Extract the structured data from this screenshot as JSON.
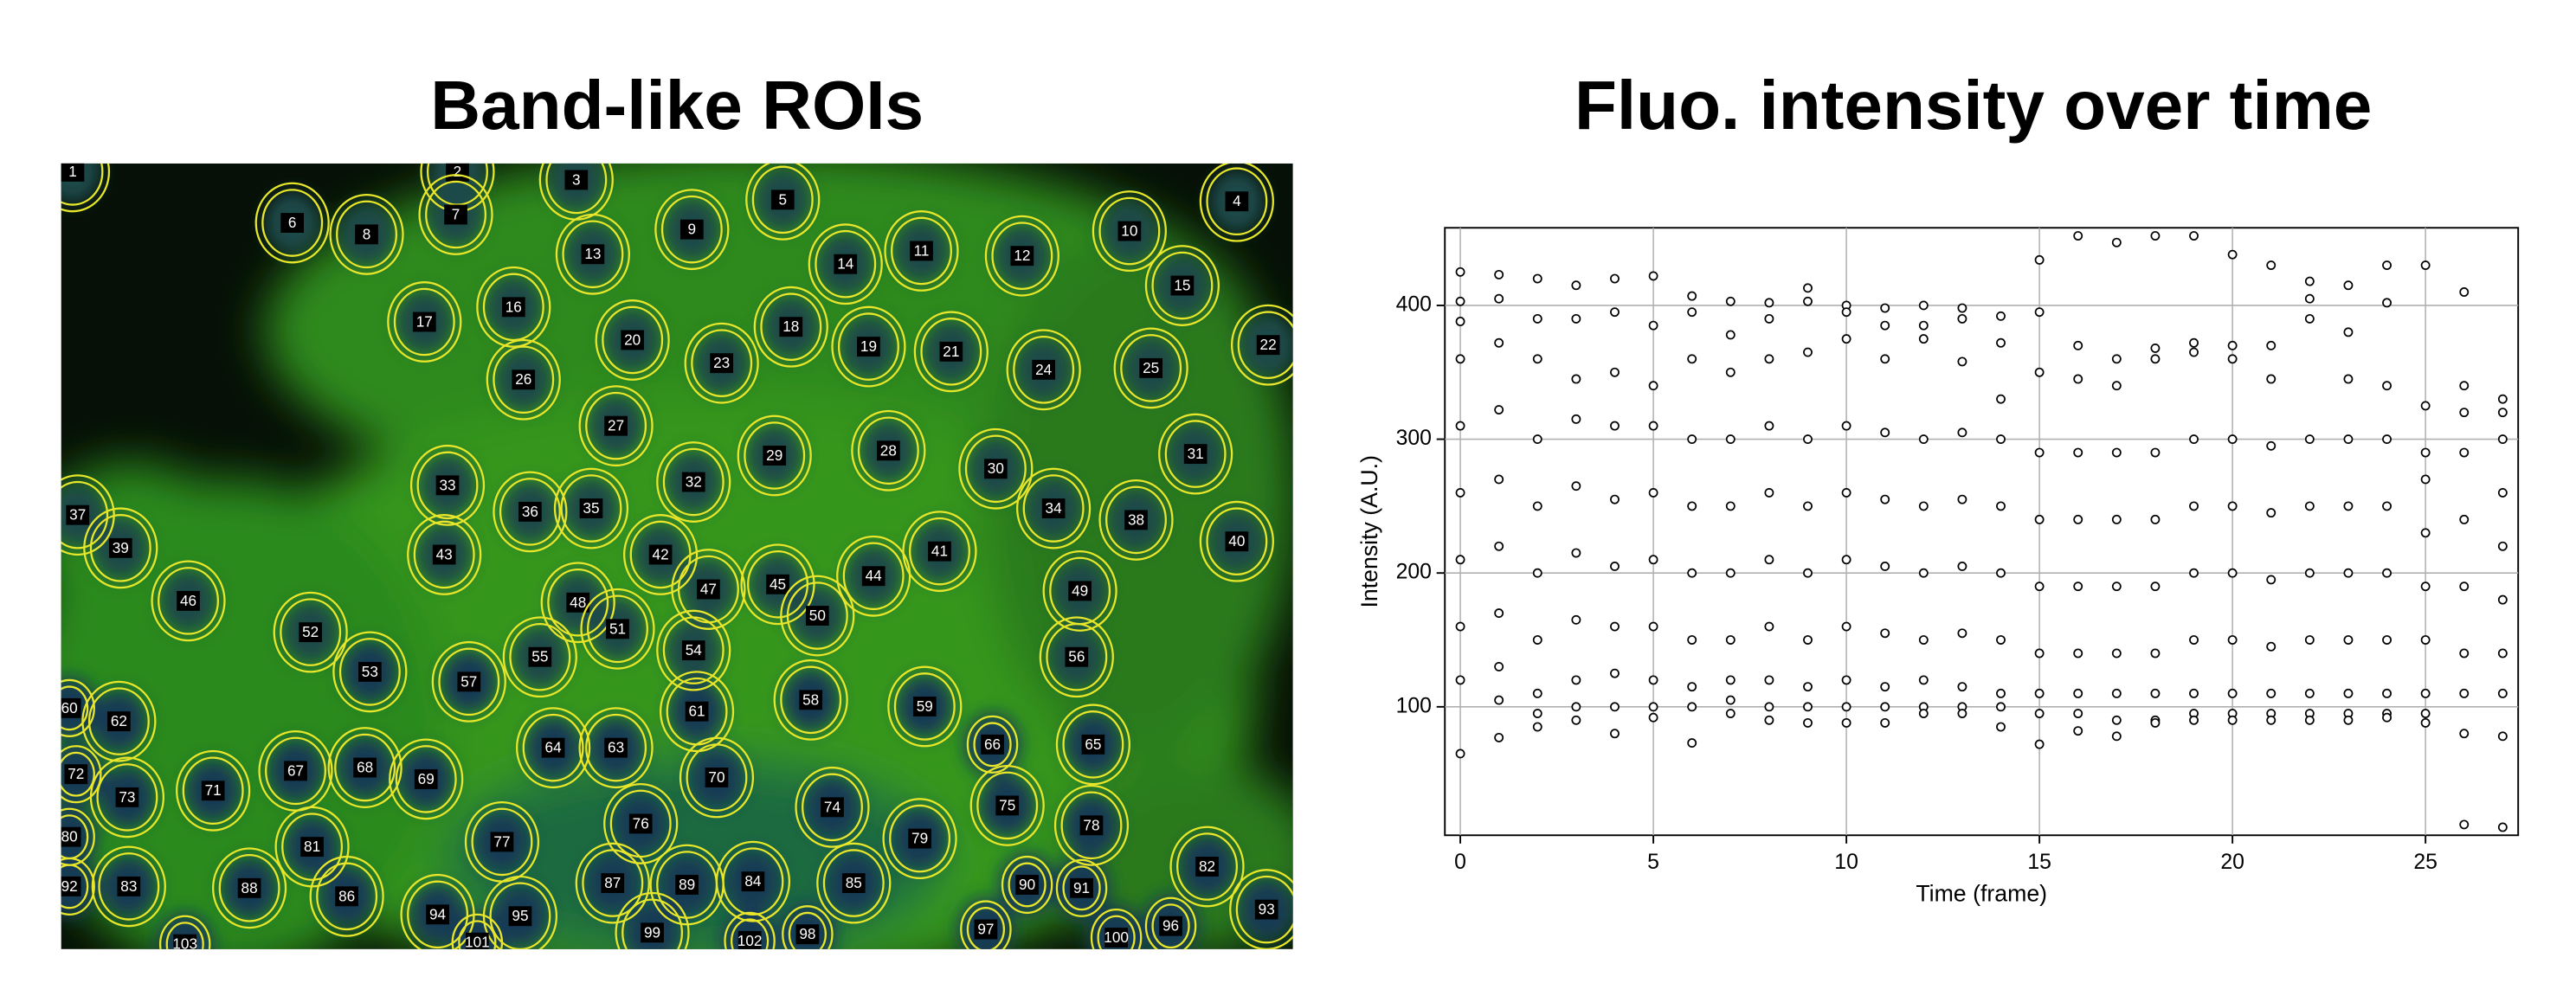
{
  "left_panel": {
    "title": "Band-like ROIs",
    "roi_labels": [
      1,
      2,
      3,
      4,
      5,
      6,
      7,
      8,
      9,
      10,
      11,
      12,
      13,
      14,
      15,
      16,
      17,
      18,
      19,
      20,
      21,
      22,
      23,
      24,
      25,
      26,
      27,
      28,
      29,
      30,
      31,
      32,
      33,
      34,
      35,
      36,
      37,
      38,
      39,
      40,
      41,
      42,
      43,
      44,
      45,
      46,
      47,
      48,
      49,
      50,
      51,
      52,
      53,
      54,
      55,
      56,
      57,
      58,
      59,
      60,
      61,
      62,
      63,
      64,
      65,
      66,
      67,
      68,
      69,
      70,
      71,
      72,
      73,
      74,
      75,
      76,
      77,
      78,
      79,
      80,
      81,
      82,
      83,
      84,
      85,
      86,
      87,
      88,
      89,
      90,
      91,
      92,
      93,
      94,
      95,
      96,
      97,
      98,
      99,
      100,
      101,
      102,
      103
    ]
  },
  "chart_data": {
    "type": "scatter",
    "title": "Fluo. intensity over time",
    "x_label": "Time (frame)",
    "y_label": "Intensity (A.U.)",
    "xlim": [
      -0.4,
      27.4
    ],
    "ylim": [
      4,
      458
    ],
    "xticks": [
      0,
      5,
      10,
      15,
      20,
      25
    ],
    "yticks": [
      100,
      200,
      300,
      400
    ],
    "grid": true,
    "color": "#000000",
    "x": [
      0,
      0,
      0,
      0,
      0,
      0,
      0,
      0,
      0,
      0,
      1,
      1,
      1,
      1,
      1,
      1,
      1,
      1,
      1,
      1,
      2,
      2,
      2,
      2,
      2,
      2,
      2,
      2,
      2,
      2,
      3,
      3,
      3,
      3,
      3,
      3,
      3,
      3,
      3,
      3,
      4,
      4,
      4,
      4,
      4,
      4,
      4,
      4,
      4,
      4,
      5,
      5,
      5,
      5,
      5,
      5,
      5,
      5,
      5,
      5,
      6,
      6,
      6,
      6,
      6,
      6,
      6,
      6,
      6,
      6,
      7,
      7,
      7,
      7,
      7,
      7,
      7,
      7,
      7,
      7,
      8,
      8,
      8,
      8,
      8,
      8,
      8,
      8,
      8,
      8,
      9,
      9,
      9,
      9,
      9,
      9,
      9,
      9,
      9,
      9,
      10,
      10,
      10,
      10,
      10,
      10,
      10,
      10,
      10,
      10,
      11,
      11,
      11,
      11,
      11,
      11,
      11,
      11,
      11,
      11,
      12,
      12,
      12,
      12,
      12,
      12,
      12,
      12,
      12,
      12,
      13,
      13,
      13,
      13,
      13,
      13,
      13,
      13,
      13,
      13,
      14,
      14,
      14,
      14,
      14,
      14,
      14,
      14,
      14,
      14,
      15,
      15,
      15,
      15,
      15,
      15,
      15,
      15,
      15,
      15,
      16,
      16,
      16,
      16,
      16,
      16,
      16,
      16,
      16,
      16,
      17,
      17,
      17,
      17,
      17,
      17,
      17,
      17,
      17,
      17,
      18,
      18,
      18,
      18,
      18,
      18,
      18,
      18,
      18,
      18,
      19,
      19,
      19,
      19,
      19,
      19,
      19,
      19,
      19,
      19,
      20,
      20,
      20,
      20,
      20,
      20,
      20,
      20,
      20,
      20,
      21,
      21,
      21,
      21,
      21,
      21,
      21,
      21,
      21,
      21,
      22,
      22,
      22,
      22,
      22,
      22,
      22,
      22,
      22,
      22,
      23,
      23,
      23,
      23,
      23,
      23,
      23,
      23,
      23,
      23,
      24,
      24,
      24,
      24,
      24,
      24,
      24,
      24,
      24,
      24,
      25,
      25,
      25,
      25,
      25,
      25,
      25,
      25,
      25,
      25,
      26,
      26,
      26,
      26,
      26,
      26,
      26,
      26,
      26,
      26,
      27,
      27,
      27,
      27,
      27,
      27,
      27,
      27,
      27,
      27
    ],
    "y": [
      425,
      403,
      388,
      360,
      310,
      260,
      210,
      160,
      120,
      65,
      423,
      405,
      372,
      322,
      270,
      220,
      170,
      130,
      105,
      77,
      420,
      390,
      360,
      300,
      250,
      200,
      150,
      110,
      95,
      85,
      415,
      390,
      345,
      315,
      265,
      215,
      165,
      120,
      100,
      90,
      420,
      395,
      350,
      310,
      255,
      205,
      160,
      125,
      100,
      80,
      422,
      385,
      340,
      310,
      260,
      210,
      160,
      120,
      100,
      92,
      407,
      395,
      360,
      300,
      250,
      200,
      150,
      115,
      100,
      73,
      403,
      378,
      350,
      300,
      250,
      200,
      150,
      120,
      105,
      95,
      402,
      390,
      360,
      310,
      260,
      210,
      160,
      120,
      100,
      90,
      413,
      403,
      365,
      300,
      250,
      200,
      150,
      115,
      100,
      88,
      400,
      395,
      375,
      310,
      260,
      210,
      160,
      120,
      100,
      88,
      398,
      385,
      360,
      305,
      255,
      205,
      155,
      115,
      100,
      88,
      400,
      385,
      375,
      300,
      250,
      200,
      150,
      120,
      100,
      95,
      398,
      390,
      358,
      305,
      255,
      205,
      155,
      115,
      100,
      95,
      392,
      372,
      330,
      300,
      250,
      200,
      150,
      110,
      100,
      85,
      434,
      395,
      350,
      290,
      240,
      190,
      140,
      110,
      95,
      72,
      452,
      370,
      345,
      290,
      240,
      190,
      140,
      110,
      95,
      82,
      447,
      360,
      340,
      290,
      240,
      190,
      140,
      110,
      90,
      78,
      452,
      368,
      360,
      290,
      240,
      190,
      140,
      110,
      90,
      88,
      452,
      372,
      365,
      300,
      250,
      200,
      150,
      110,
      95,
      90,
      438,
      370,
      360,
      300,
      250,
      200,
      150,
      110,
      95,
      90,
      430,
      370,
      345,
      295,
      245,
      195,
      145,
      110,
      95,
      90,
      418,
      405,
      390,
      300,
      250,
      200,
      150,
      110,
      95,
      90,
      415,
      380,
      345,
      300,
      250,
      200,
      150,
      110,
      95,
      90,
      430,
      402,
      340,
      300,
      250,
      200,
      150,
      110,
      95,
      92,
      430,
      325,
      290,
      270,
      230,
      190,
      150,
      110,
      95,
      88,
      410,
      340,
      320,
      290,
      240,
      190,
      140,
      110,
      80,
      12,
      330,
      320,
      300,
      260,
      220,
      180,
      140,
      110,
      78,
      10
    ]
  }
}
